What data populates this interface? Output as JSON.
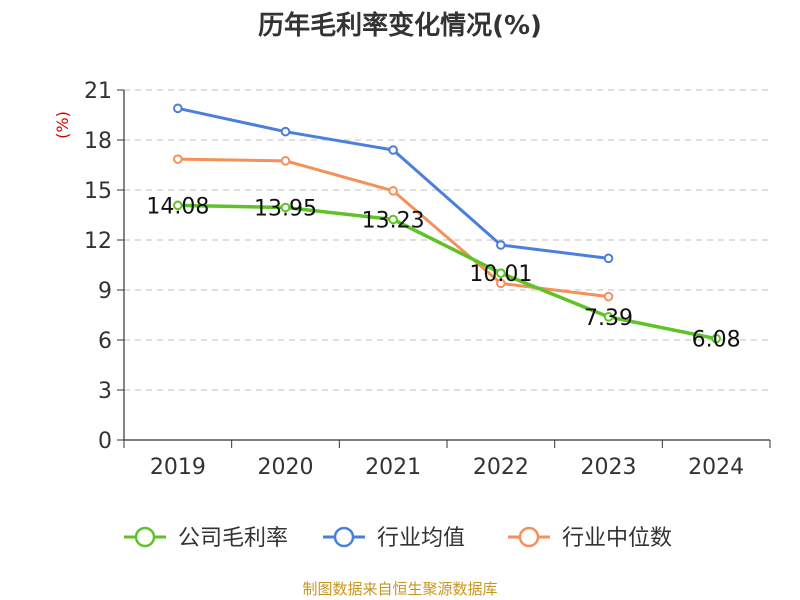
{
  "chart_data": {
    "type": "line",
    "title": "历年毛利率变化情况(%)",
    "ylabel": "(%)",
    "xlabel": "",
    "categories": [
      "2019",
      "2020",
      "2021",
      "2022",
      "2023",
      "2024"
    ],
    "ylim": [
      0,
      21
    ],
    "yticks": [
      0,
      3,
      6,
      9,
      12,
      15,
      18,
      21
    ],
    "grid": true,
    "legend_position": "bottom",
    "series": [
      {
        "name": "公司毛利率",
        "color": "#5fc227",
        "values": [
          14.08,
          13.95,
          13.23,
          10.01,
          7.39,
          6.08
        ],
        "labels": [
          "14.08",
          "13.95",
          "13.23",
          "10.01",
          "7.39",
          "6.08"
        ]
      },
      {
        "name": "行业均值",
        "color": "#4a7fdc",
        "values": [
          19.9,
          18.5,
          17.4,
          11.7,
          10.9,
          null
        ]
      },
      {
        "name": "行业中位数",
        "color": "#f5905a",
        "values": [
          16.85,
          16.75,
          14.95,
          9.4,
          8.6,
          null
        ]
      }
    ],
    "source": "制图数据来自恒生聚源数据库"
  }
}
